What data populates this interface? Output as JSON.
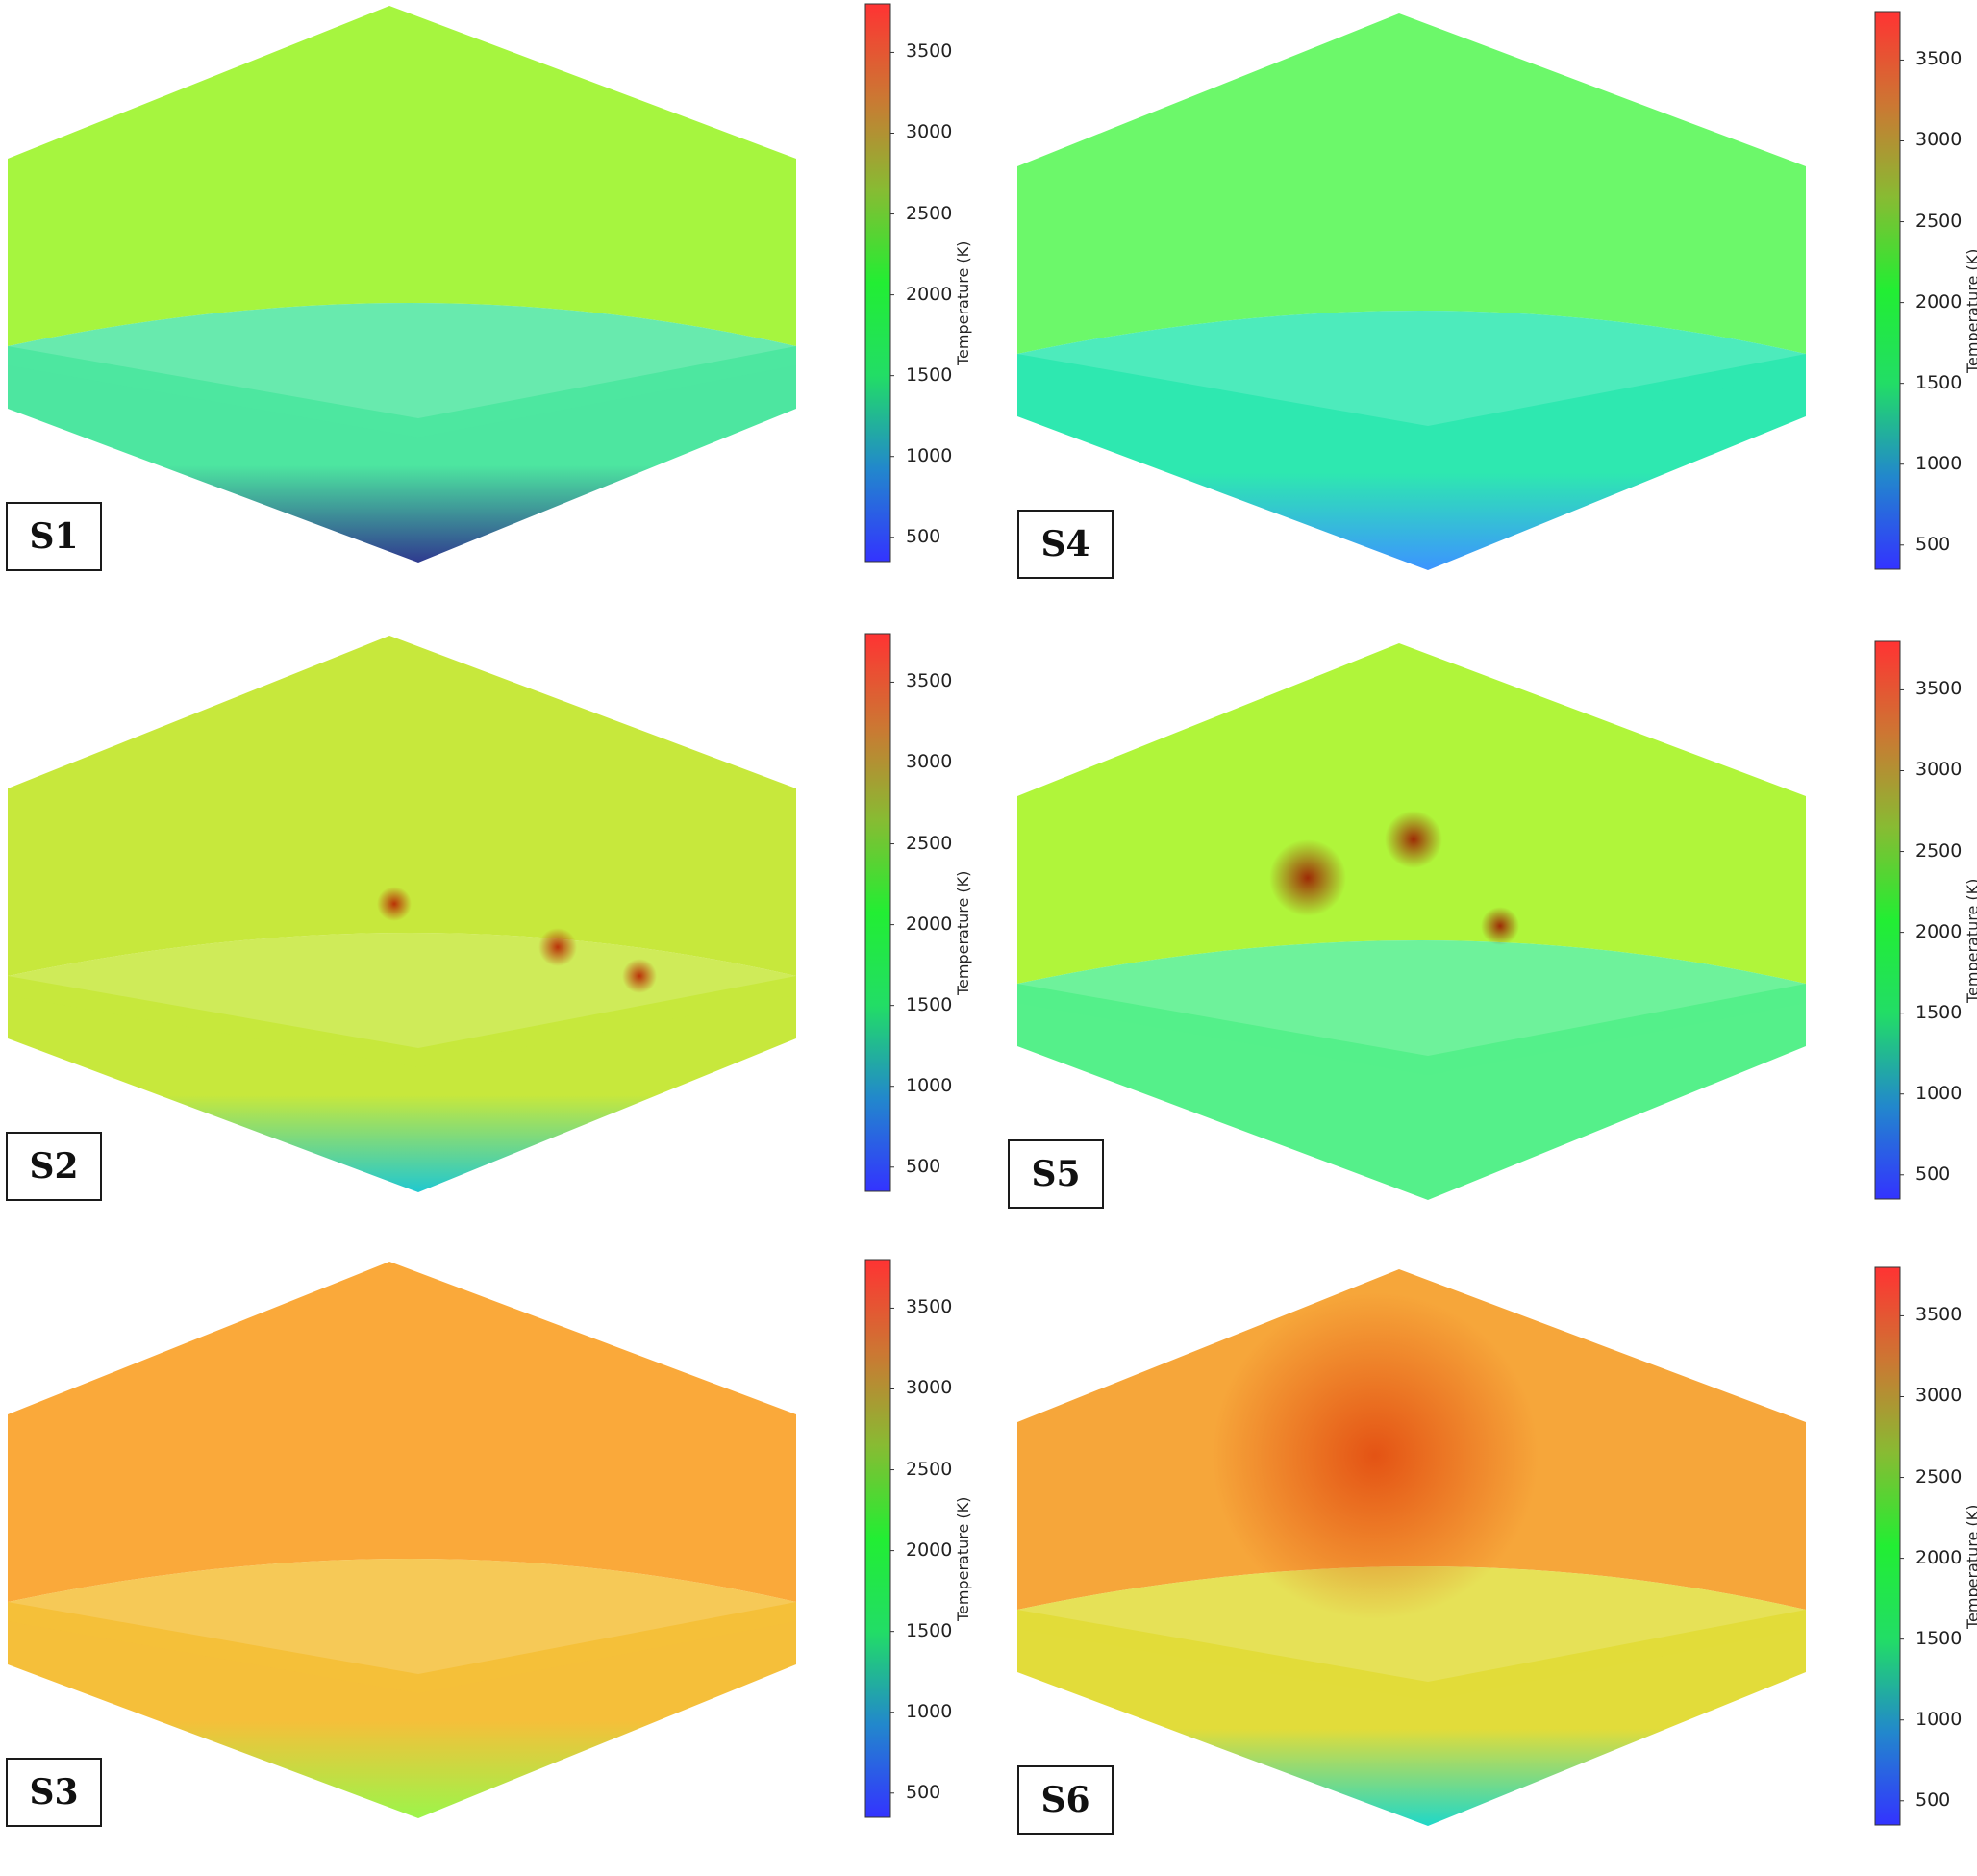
{
  "chart_data": {
    "type": "heatmap",
    "colorbar": {
      "label": "Temperature (K)",
      "range": [
        350,
        3800
      ],
      "ticks": [
        500,
        1000,
        1500,
        2000,
        2500,
        3000,
        3500
      ],
      "colormap": [
        "#3333ff",
        "#2288cc",
        "#22dd66",
        "#22ee33",
        "#88bb33",
        "#cc7733",
        "#ff3333"
      ]
    },
    "panels": [
      {
        "label": "S1",
        "top_face_color": "#a6f53f",
        "upper_side_color": "#4de6a0",
        "lower_side_color": "#2f3a8f"
      },
      {
        "label": "S2",
        "top_face_color": "#c7e83c",
        "upper_side_color": "#c7e83c",
        "lower_side_color": "#20c8d0",
        "hot_spots_color": "#b81e00"
      },
      {
        "label": "S3",
        "top_face_color": "#faa93a",
        "upper_side_color": "#f5bf3a",
        "lower_side_color": "#9cf54a"
      },
      {
        "label": "S4",
        "top_face_color": "#6cf86a",
        "upper_side_color": "#2ee8b0",
        "lower_side_color": "#3c94ff"
      },
      {
        "label": "S5",
        "top_face_color": "#b0f53a",
        "upper_side_color": "#55f08a",
        "lower_side_color": "#55f08a",
        "hot_spots_color": "#9b1500"
      },
      {
        "label": "S6",
        "top_face_color": "#f6a63a",
        "upper_side_color": "#e2dc3a",
        "lower_side_color": "#1fd8c8",
        "hot_spots_color": "#e24a10"
      }
    ]
  }
}
